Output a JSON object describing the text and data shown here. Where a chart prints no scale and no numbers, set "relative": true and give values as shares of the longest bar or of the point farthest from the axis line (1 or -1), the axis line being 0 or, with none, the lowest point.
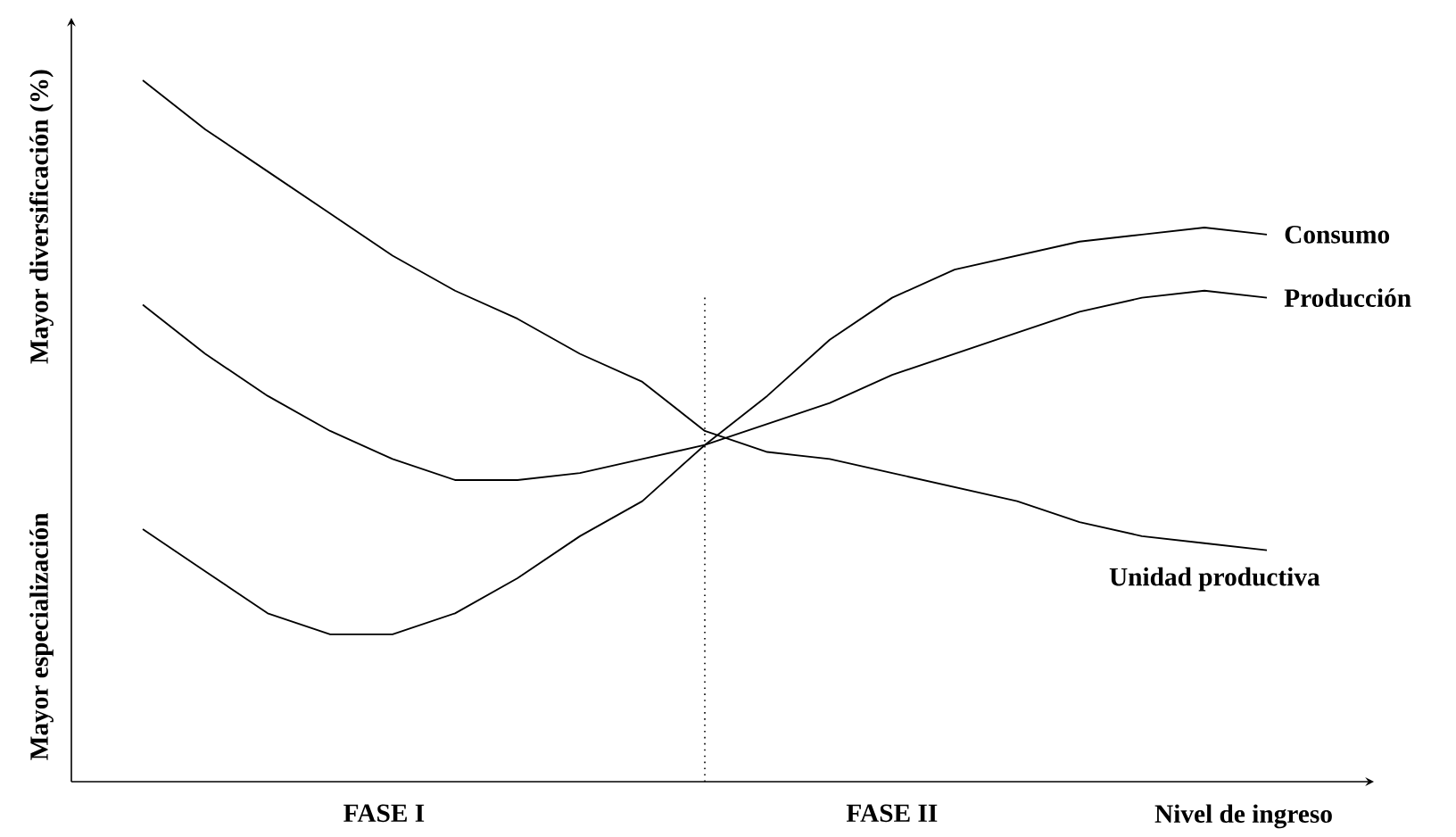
{
  "chart_data": {
    "type": "line",
    "relative": true,
    "xlabel": "Nivel de ingreso",
    "ylabel": "Mayor diversificación (%)",
    "categories": [
      null,
      null,
      null,
      null,
      null,
      null,
      null,
      null,
      null,
      null,
      null,
      null,
      null,
      null,
      null,
      null,
      null,
      null,
      null
    ],
    "series": [
      {
        "name": "Consumo",
        "color": "#000000",
        "values": [
          0.36,
          0.3,
          0.24,
          0.21,
          0.21,
          0.24,
          0.29,
          0.35,
          0.4,
          0.48,
          0.55,
          0.63,
          0.69,
          0.73,
          0.75,
          0.77,
          0.78,
          0.79,
          0.78
        ]
      },
      {
        "name": "Producción",
        "color": "#000000",
        "values": [
          0.68,
          0.61,
          0.55,
          0.5,
          0.46,
          0.43,
          0.43,
          0.44,
          0.46,
          0.48,
          0.51,
          0.54,
          0.58,
          0.61,
          0.64,
          0.67,
          0.69,
          0.7,
          0.69
        ]
      },
      {
        "name": "Unidad productiva",
        "color": "#000000",
        "values": [
          1.0,
          0.93,
          0.87,
          0.81,
          0.75,
          0.7,
          0.66,
          0.61,
          0.57,
          0.5,
          0.47,
          0.46,
          0.44,
          0.42,
          0.4,
          0.37,
          0.35,
          0.34,
          0.33
        ]
      }
    ],
    "annotations": [
      "FASE I",
      "FASE II",
      "Mayor especialización"
    ]
  }
}
